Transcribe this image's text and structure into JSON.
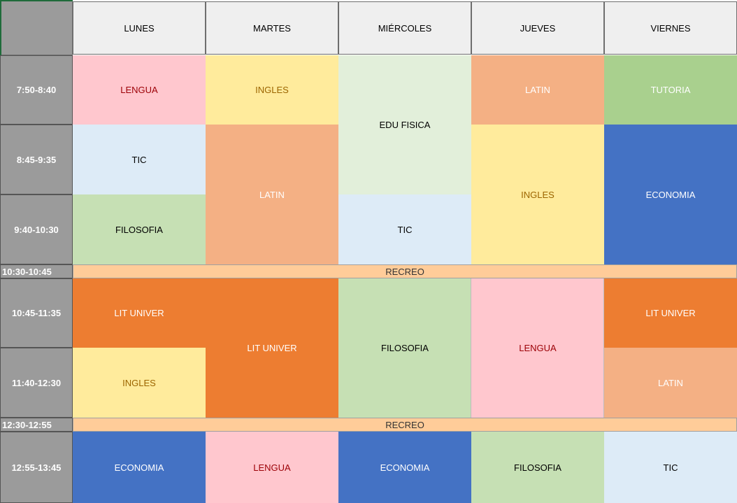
{
  "days": [
    "LUNES",
    "MARTES",
    "MIÉRCOLES",
    "JUEVES",
    "VIERNES"
  ],
  "times": [
    "7:50-8:40",
    "8:45-9:35",
    "9:40-10:30",
    "10:30-10:45",
    "10:45-11:35",
    "11:40-12:30",
    "12:30-12:55",
    "12:55-13:45"
  ],
  "recreo": [
    "RECREO",
    "RECREO"
  ],
  "subjects": {
    "lunes": [
      "LENGUA",
      "TIC",
      "FILOSOFIA",
      "LIT UNIVER",
      "INGLES",
      "ECONOMIA"
    ],
    "martes": [
      "INGLES",
      "LATIN",
      "LIT UNIVER",
      "LENGUA"
    ],
    "miercoles": [
      "EDU FISICA",
      "TIC",
      "FILOSOFIA",
      "ECONOMIA"
    ],
    "jueves": [
      "LATIN",
      "INGLES",
      "LENGUA",
      "FILOSOFIA"
    ],
    "viernes": [
      "TUTORIA",
      "ECONOMIA",
      "LIT UNIVER",
      "LATIN",
      "TIC"
    ]
  },
  "colors": {
    "lengua": "#ffc7ce",
    "ingles": "#ffeb9c",
    "edu_fisica": "#e2efda",
    "latin": "#f4b084",
    "tutoria": "#a9d08e",
    "tic": "#ddebf7",
    "filosofia": "#c6e0b4",
    "economia": "#4472c4",
    "lit_univer": "#ed7d31",
    "recreo": "#ffcc99",
    "header": "#efefef",
    "time_column": "#9b9b9b"
  }
}
